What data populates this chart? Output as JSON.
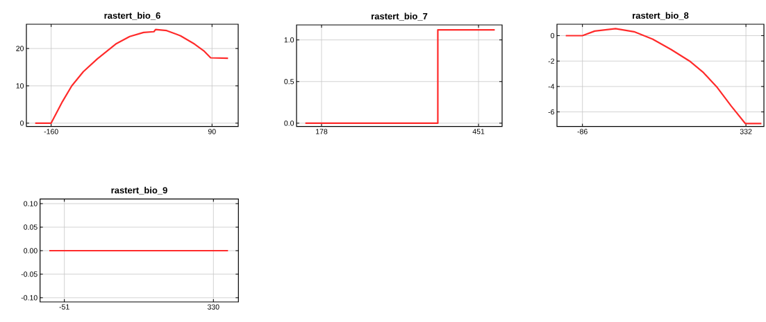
{
  "chart_data": [
    {
      "type": "line",
      "title": "rastert_bio_6",
      "color": "#ff2a2a",
      "grid": true,
      "x": [
        -184.8,
        -160,
        -142.4,
        -128,
        -110,
        -88.4,
        -59.6,
        -38,
        -16.4,
        -0.3,
        2.3,
        19.5,
        41.1,
        62.7,
        77.1,
        87.9,
        114.9
      ],
      "values": [
        0,
        0,
        5.8,
        10,
        13.8,
        17.2,
        21.2,
        23.2,
        24.3,
        24.5,
        25.1,
        24.8,
        23.4,
        21.2,
        19.4,
        17.5,
        17.4
      ],
      "xlim": [
        -198.5,
        130.7
      ],
      "ylim": [
        -0.9,
        26.5
      ],
      "xticks": [
        -160,
        90
      ],
      "yticks": [
        0,
        10,
        20
      ]
    },
    {
      "type": "line",
      "title": "rastert_bio_7",
      "color": "#ff2a2a",
      "grid": true,
      "x": [
        149.8,
        380.2,
        380.2,
        479.2
      ],
      "values": [
        0,
        0,
        1.12,
        1.12
      ],
      "xlim": [
        134.5,
        492
      ],
      "ylim": [
        -0.04,
        1.18
      ],
      "xticks": [
        178,
        451
      ],
      "yticks": [
        {
          "value": 0,
          "label": "0.0"
        },
        {
          "value": 0.5,
          "label": "0.5"
        },
        {
          "value": 1,
          "label": "1.0"
        }
      ]
    },
    {
      "type": "line",
      "title": "rastert_bio_8",
      "color": "#ff2a2a",
      "grid": true,
      "x": [
        -128.6,
        -86,
        -54.6,
        -1.3,
        46,
        93.4,
        140.7,
        188,
        223.6,
        259,
        294.7,
        330.2,
        371.6
      ],
      "values": [
        0,
        0,
        0.36,
        0.55,
        0.31,
        -0.27,
        -1.09,
        -2,
        -2.91,
        -4.09,
        -5.55,
        -6.91,
        -6.91
      ],
      "xlim": [
        -151.1,
        378
      ],
      "ylim": [
        -7.15,
        0.9
      ],
      "xticks": [
        -86,
        332
      ],
      "yticks": [
        -6,
        -4,
        -2,
        0
      ]
    },
    {
      "type": "line",
      "title": "rastert_bio_9",
      "color": "#ff2a2a",
      "grid": true,
      "x": [
        -89.5,
        367.3
      ],
      "values": [
        0,
        0
      ],
      "xlim": [
        -113.1,
        393.9
      ],
      "ylim": [
        -0.109,
        0.11
      ],
      "xticks": [
        -51,
        330
      ],
      "yticks": [
        {
          "value": -0.1,
          "label": "-0.10"
        },
        {
          "value": -0.05,
          "label": "-0.05"
        },
        {
          "value": 0,
          "label": "0.00"
        },
        {
          "value": 0.05,
          "label": "0.05"
        },
        {
          "value": 0.1,
          "label": "0.10"
        }
      ]
    }
  ]
}
